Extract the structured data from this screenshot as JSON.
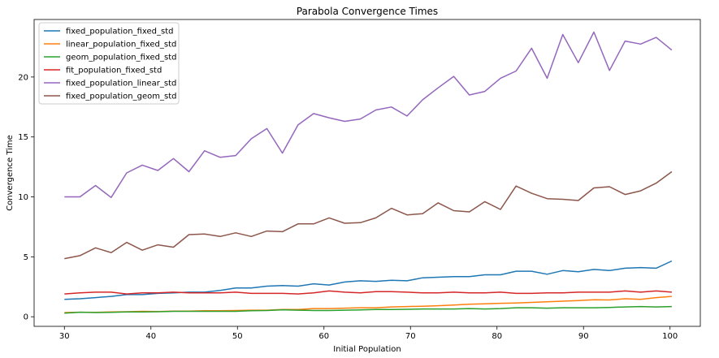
{
  "chart_data": {
    "type": "line",
    "title": "Parabola Convergence Times",
    "xlabel": "Initial Population",
    "ylabel": "Convergence Time",
    "xlim": [
      26.5,
      103.5
    ],
    "ylim": [
      -0.8,
      24.8
    ],
    "xticks": [
      30,
      40,
      50,
      60,
      70,
      80,
      90,
      100
    ],
    "yticks": [
      0,
      5,
      10,
      15,
      20
    ],
    "grid": false,
    "legend_position": "top-left",
    "x": [
      30,
      31.8,
      33.6,
      35.4,
      37.2,
      39,
      40.8,
      42.6,
      44.4,
      46.2,
      48,
      49.8,
      51.6,
      53.4,
      55.2,
      57,
      58.8,
      60.6,
      62.4,
      64.2,
      66,
      67.8,
      69.6,
      71.4,
      73.2,
      75,
      76.8,
      78.6,
      80.4,
      82.2,
      84,
      85.8,
      87.6,
      89.4,
      91.2,
      93,
      94.8,
      96.6,
      98.4,
      100.2
    ],
    "series": [
      {
        "name": "fixed_population_fixed_std",
        "color": "#1f77b4",
        "values": [
          1.45,
          1.5,
          1.6,
          1.7,
          1.85,
          1.85,
          1.95,
          2.0,
          2.05,
          2.05,
          2.2,
          2.4,
          2.4,
          2.55,
          2.6,
          2.55,
          2.75,
          2.65,
          2.9,
          3.0,
          2.95,
          3.05,
          3.0,
          3.25,
          3.3,
          3.35,
          3.35,
          3.5,
          3.5,
          3.8,
          3.8,
          3.55,
          3.85,
          3.75,
          3.95,
          3.85,
          4.05,
          4.1,
          4.05,
          4.65
        ]
      },
      {
        "name": "linear_population_fixed_std",
        "color": "#ff7f0e",
        "values": [
          0.35,
          0.38,
          0.37,
          0.4,
          0.42,
          0.45,
          0.43,
          0.47,
          0.47,
          0.5,
          0.5,
          0.52,
          0.55,
          0.55,
          0.6,
          0.6,
          0.68,
          0.68,
          0.72,
          0.75,
          0.75,
          0.82,
          0.85,
          0.88,
          0.92,
          0.98,
          1.05,
          1.08,
          1.12,
          1.15,
          1.2,
          1.25,
          1.3,
          1.35,
          1.42,
          1.4,
          1.5,
          1.45,
          1.6,
          1.7
        ]
      },
      {
        "name": "geom_population_fixed_std",
        "color": "#2ca02c",
        "values": [
          0.3,
          0.38,
          0.35,
          0.37,
          0.4,
          0.4,
          0.42,
          0.45,
          0.45,
          0.45,
          0.45,
          0.45,
          0.5,
          0.52,
          0.58,
          0.55,
          0.52,
          0.52,
          0.55,
          0.57,
          0.6,
          0.6,
          0.62,
          0.65,
          0.65,
          0.65,
          0.68,
          0.65,
          0.68,
          0.75,
          0.75,
          0.72,
          0.75,
          0.75,
          0.75,
          0.78,
          0.82,
          0.85,
          0.82,
          0.85
        ]
      },
      {
        "name": "fit_population_fixed_std",
        "color": "#d62728",
        "values": [
          1.9,
          2.0,
          2.05,
          2.05,
          1.9,
          2.0,
          2.0,
          2.05,
          2.0,
          2.0,
          2.0,
          2.05,
          1.95,
          1.95,
          1.95,
          1.9,
          2.0,
          2.15,
          2.05,
          2.0,
          2.1,
          2.1,
          2.05,
          2.0,
          2.0,
          2.05,
          2.0,
          2.0,
          2.05,
          1.95,
          1.95,
          2.0,
          2.0,
          2.05,
          2.05,
          2.05,
          2.15,
          2.05,
          2.15,
          2.05
        ]
      },
      {
        "name": "fixed_population_linear_std",
        "color": "#9467bd",
        "values": [
          10.0,
          10.0,
          10.95,
          9.95,
          12.0,
          12.65,
          12.2,
          13.2,
          12.1,
          13.85,
          13.3,
          13.45,
          14.85,
          15.7,
          13.65,
          16.0,
          16.95,
          16.6,
          16.3,
          16.5,
          17.25,
          17.5,
          16.75,
          18.1,
          19.1,
          20.05,
          18.5,
          18.8,
          19.9,
          20.5,
          22.4,
          19.9,
          23.55,
          21.2,
          23.75,
          20.55,
          23.0,
          22.75,
          23.3,
          22.25
        ]
      },
      {
        "name": "fixed_population_geom_std",
        "color": "#8c564b",
        "values": [
          4.85,
          5.1,
          5.75,
          5.35,
          6.2,
          5.55,
          6.0,
          5.8,
          6.85,
          6.9,
          6.7,
          7.0,
          6.7,
          7.15,
          7.1,
          7.75,
          7.75,
          8.25,
          7.8,
          7.85,
          8.25,
          9.05,
          8.5,
          8.6,
          9.5,
          8.85,
          8.75,
          9.6,
          8.95,
          10.9,
          10.3,
          9.85,
          9.8,
          9.7,
          10.75,
          10.85,
          10.2,
          10.5,
          11.15,
          12.1
        ]
      }
    ]
  }
}
